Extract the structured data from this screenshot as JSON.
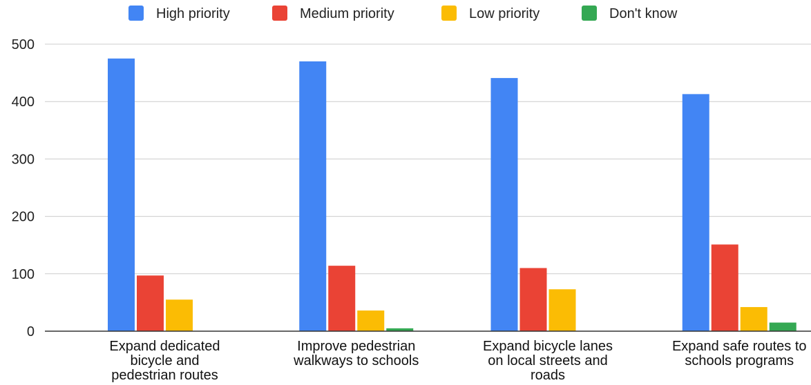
{
  "chart_data": {
    "type": "bar",
    "categories": [
      [
        "Expand dedicated",
        "bicycle and",
        "pedestrian routes"
      ],
      [
        "Improve pedestrian",
        "walkways to schools"
      ],
      [
        "Expand bicycle lanes",
        "on local streets and",
        "roads"
      ],
      [
        "Expand safe routes to",
        "schools programs"
      ]
    ],
    "series": [
      {
        "name": "High priority",
        "color": "#4285F4",
        "values": [
          475,
          470,
          441,
          413
        ]
      },
      {
        "name": "Medium priority",
        "color": "#EA4335",
        "values": [
          97,
          114,
          110,
          151
        ]
      },
      {
        "name": "Low priority",
        "color": "#FBBC04",
        "values": [
          55,
          36,
          73,
          42
        ]
      },
      {
        "name": "Don't know",
        "color": "#34A853",
        "values": [
          0,
          5,
          0,
          15
        ]
      }
    ],
    "yticks": [
      0,
      100,
      200,
      300,
      400,
      500
    ],
    "ylim": [
      0,
      500
    ],
    "grid": true,
    "legend_position": "top",
    "title": "",
    "xlabel": "",
    "ylabel": ""
  }
}
